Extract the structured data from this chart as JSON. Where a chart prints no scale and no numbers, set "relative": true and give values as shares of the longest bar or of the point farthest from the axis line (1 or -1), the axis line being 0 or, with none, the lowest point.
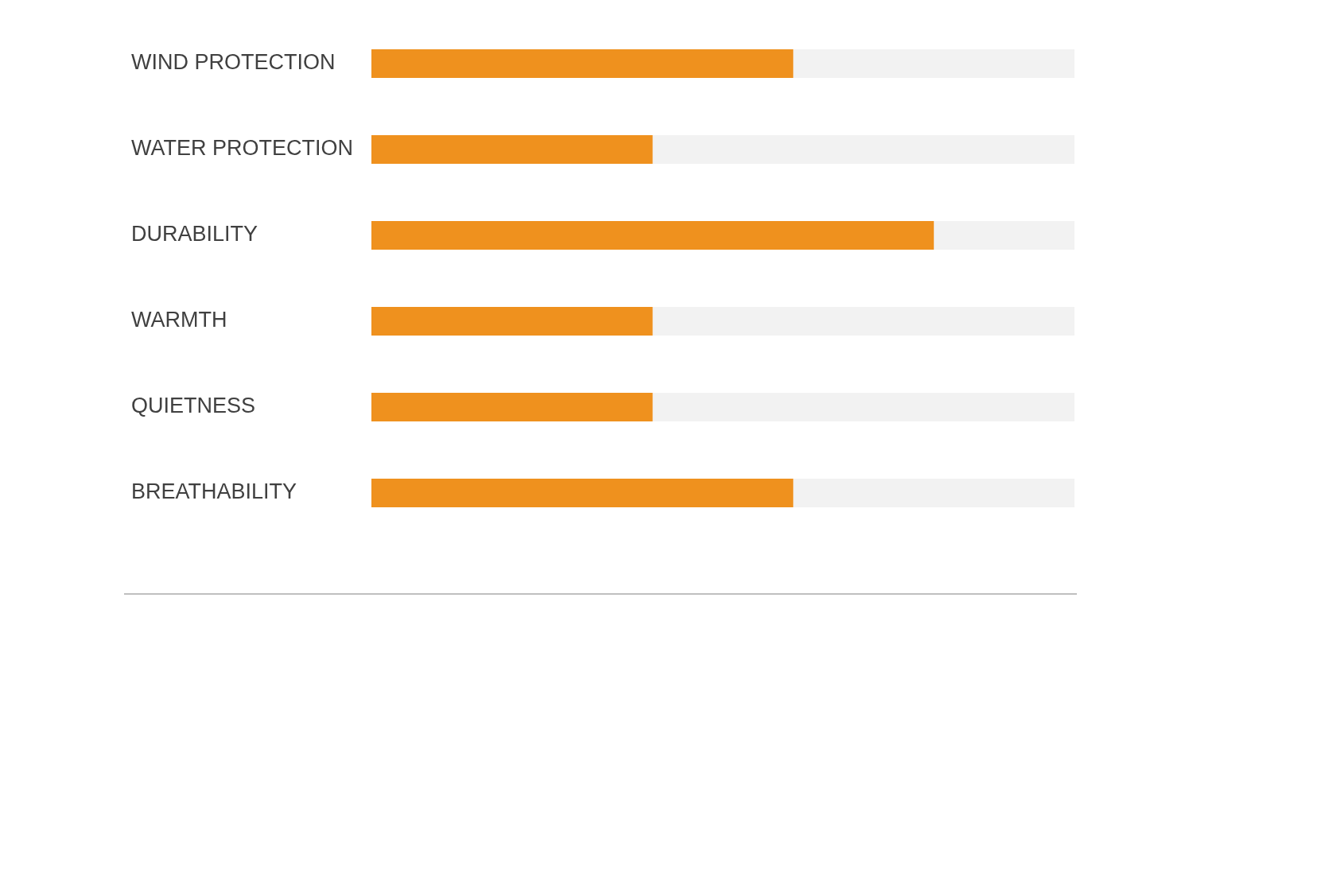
{
  "chart_data": {
    "type": "bar",
    "orientation": "horizontal",
    "stacked": true,
    "relative": true,
    "categories": [
      "WIND PROTECTION",
      "WATER PROTECTION",
      "DURABILITY",
      "WARMTH",
      "QUIETNESS",
      "BREATHABILITY"
    ],
    "series": [
      {
        "color": "#ef911e",
        "values": [
          0.6,
          0.4,
          0.8,
          0.4,
          0.4,
          0.6
        ]
      },
      {
        "color": "#f2f2f2",
        "values": [
          0.4,
          0.6,
          0.2,
          0.6,
          0.6,
          0.4
        ]
      }
    ]
  }
}
